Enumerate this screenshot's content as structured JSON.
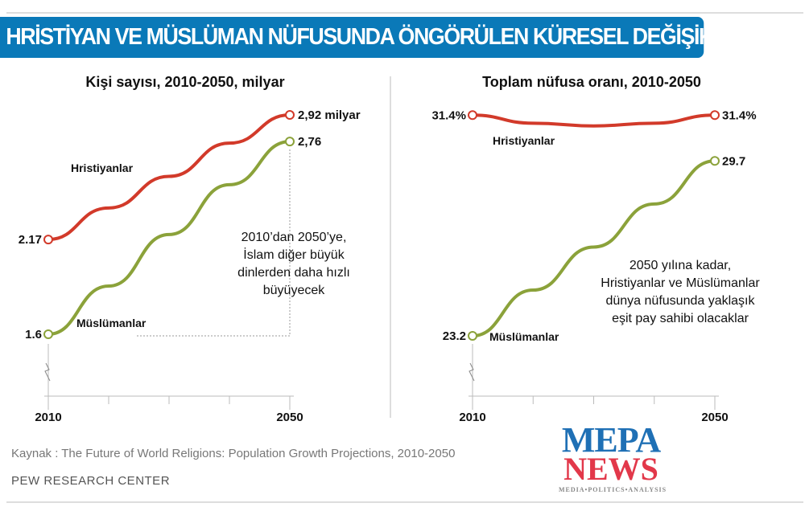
{
  "banner_title": "HRİSTİYAN VE MÜSLÜMAN NÜFUSUNDA ÖNGÖRÜLEN KÜRESEL DEĞİŞİKLİK",
  "colors": {
    "christians": "#d23a2a",
    "muslims": "#8ba23a",
    "banner": "#0a79b8"
  },
  "chart_data": [
    {
      "type": "line",
      "title": "Kişi sayısı, 2010-2050, milyar",
      "x": [
        2010,
        2020,
        2030,
        2040,
        2050
      ],
      "xticks": [
        "2010",
        "2050"
      ],
      "ylim": [
        1.4,
        3.0
      ],
      "axis_break": true,
      "series": [
        {
          "name": "Hristiyanlar",
          "values": [
            2.17,
            2.36,
            2.55,
            2.75,
            2.92
          ],
          "start_label": "2.17",
          "end_label": "2,92 milyar"
        },
        {
          "name": "Müslümanlar",
          "values": [
            1.6,
            1.89,
            2.2,
            2.5,
            2.76
          ],
          "start_label": "1.6",
          "end_label": "2,76"
        }
      ],
      "annotation": [
        "2010’dan 2050’ye,",
        "İslam diğer büyük",
        "dinlerden daha hızlı",
        "büyüyecek"
      ]
    },
    {
      "type": "line",
      "title": "Toplam nüfusa oranı, 2010-2050",
      "x": [
        2010,
        2020,
        2030,
        2040,
        2050
      ],
      "xticks": [
        "2010",
        "2050"
      ],
      "ylim": [
        22.5,
        32
      ],
      "axis_break": true,
      "series": [
        {
          "name": "Hristiyanlar",
          "values": [
            31.4,
            31.1,
            31.0,
            31.1,
            31.4
          ],
          "start_label": "31.4%",
          "end_label": "31.4%"
        },
        {
          "name": "Müslümanlar",
          "values": [
            23.2,
            24.9,
            26.5,
            28.1,
            29.7
          ],
          "start_label": "23.2",
          "end_label": "29.7"
        }
      ],
      "annotation": [
        "2050 yılına kadar,",
        "Hristiyanlar ve Müslümanlar",
        "dünya nüfusunda yaklaşık",
        "eşit pay sahibi olacaklar"
      ]
    }
  ],
  "source": "Kaynak : The Future of World Religions: Population Growth Projections, 2010-2050",
  "org": "PEW RESEARCH CENTER",
  "logo": {
    "line1": "MEPA",
    "line2": "NEWS",
    "tagline": "MEDIA•POLITICS•ANALYSIS"
  }
}
